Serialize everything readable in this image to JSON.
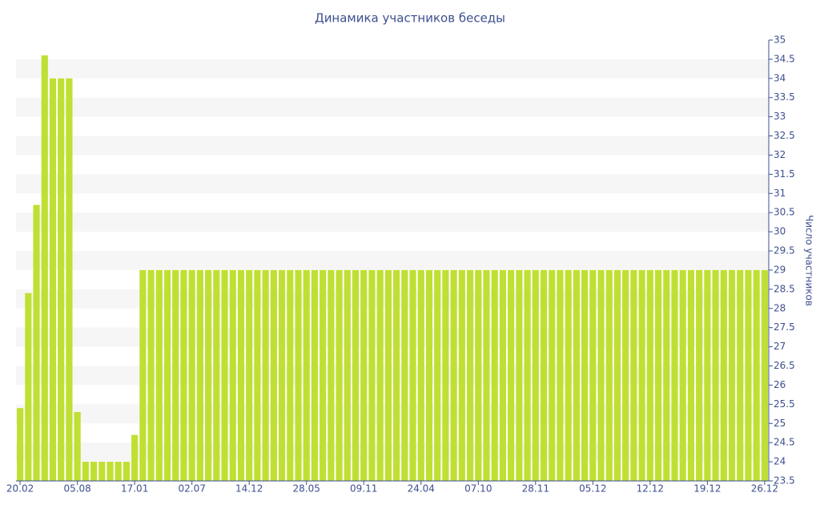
{
  "chart_data": {
    "type": "bar",
    "title": "Динамика участников беседы",
    "y_label": "Число участников",
    "categories": [
      "20.02",
      null,
      null,
      null,
      null,
      null,
      null,
      "05.08",
      null,
      null,
      null,
      null,
      null,
      null,
      "17.01",
      null,
      null,
      null,
      null,
      null,
      null,
      "02.07",
      null,
      null,
      null,
      null,
      null,
      null,
      "14.12",
      null,
      null,
      null,
      null,
      null,
      null,
      "28.05",
      null,
      null,
      null,
      null,
      null,
      null,
      "09.11",
      null,
      null,
      null,
      null,
      null,
      null,
      "24.04",
      null,
      null,
      null,
      null,
      null,
      null,
      "07.10",
      null,
      null,
      null,
      null,
      null,
      null,
      "28.11",
      null,
      null,
      null,
      null,
      null,
      null,
      "05.12",
      null,
      null,
      null,
      null,
      null,
      null,
      "12.12",
      null,
      null,
      null,
      null,
      null,
      null,
      "19.12",
      null,
      null,
      null,
      null,
      null,
      null,
      "26.12"
    ],
    "values": [
      25.4,
      28.4,
      30.7,
      34.6,
      34,
      34,
      34,
      25.3,
      24,
      24,
      24,
      24,
      24,
      24,
      24.7,
      29,
      29,
      29,
      29,
      29,
      29,
      29,
      29,
      29,
      29,
      29,
      29,
      29,
      29,
      29,
      29,
      29,
      29,
      29,
      29,
      29,
      29,
      29,
      29,
      29,
      29,
      29,
      29,
      29,
      29,
      29,
      29,
      29,
      29,
      29,
      29,
      29,
      29,
      29,
      29,
      29,
      29,
      29,
      29,
      29,
      29,
      29,
      29,
      29,
      29,
      29,
      29,
      29,
      29,
      29,
      29,
      29,
      29,
      29,
      29,
      29,
      29,
      29,
      29,
      29,
      29,
      29,
      29,
      29,
      29,
      29,
      29,
      29,
      29,
      29,
      29,
      29
    ],
    "color": "#bfe032",
    "ylim": [
      23.5,
      35
    ],
    "yticks": [
      23.5,
      24,
      24.5,
      25,
      25.5,
      26,
      26.5,
      27,
      27.5,
      28,
      28.5,
      29,
      29.5,
      30,
      30.5,
      31,
      31.5,
      32,
      32.5,
      33,
      33.5,
      34,
      34.5,
      35
    ],
    "grid": true,
    "y_axis_side": "right"
  }
}
